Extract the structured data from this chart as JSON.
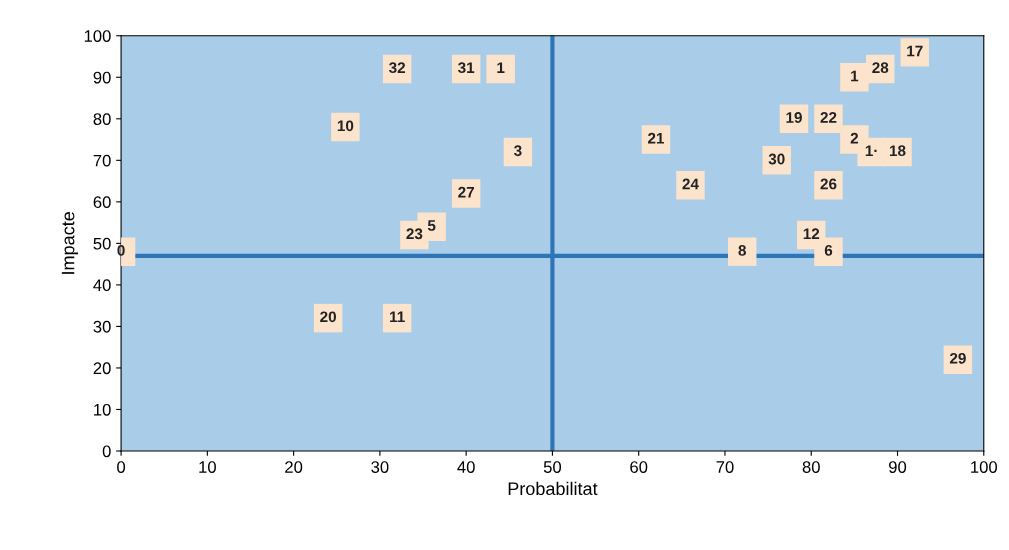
{
  "chart_data": {
    "type": "scatter",
    "xlabel": "Probabilitat",
    "ylabel": "Impacte",
    "x": [
      32,
      40,
      44,
      26,
      46,
      40,
      34,
      36,
      0,
      62,
      66,
      76,
      78,
      82,
      82,
      80,
      82,
      72,
      92,
      88,
      85,
      85,
      87,
      90,
      97,
      24,
      32
    ],
    "series": [
      {
        "color": "#fbe3cc",
        "values": [
          92,
          92,
          92,
          78,
          72,
          62,
          52,
          54,
          48,
          75,
          64,
          70,
          80,
          80,
          64,
          52,
          48,
          48,
          96,
          92,
          90,
          75,
          72,
          72,
          22,
          32,
          32
        ]
      }
    ],
    "marker": "square",
    "annotations": [
      {
        "text": "32",
        "x": 32,
        "y": 92
      },
      {
        "text": "31",
        "x": 40,
        "y": 92
      },
      {
        "text": "1",
        "x": 44,
        "y": 92
      },
      {
        "text": "10",
        "x": 26,
        "y": 78
      },
      {
        "text": "3",
        "x": 46,
        "y": 72
      },
      {
        "text": "27",
        "x": 40,
        "y": 62
      },
      {
        "text": "23",
        "x": 34,
        "y": 52
      },
      {
        "text": "5",
        "x": 36,
        "y": 54
      },
      {
        "text": "0",
        "x": 0,
        "y": 48
      },
      {
        "text": "21",
        "x": 62,
        "y": 75
      },
      {
        "text": "24",
        "x": 66,
        "y": 64
      },
      {
        "text": "30",
        "x": 76,
        "y": 70
      },
      {
        "text": "19",
        "x": 78,
        "y": 80
      },
      {
        "text": "22",
        "x": 82,
        "y": 80
      },
      {
        "text": "26",
        "x": 82,
        "y": 64
      },
      {
        "text": "12",
        "x": 80,
        "y": 52
      },
      {
        "text": "6",
        "x": 82,
        "y": 48
      },
      {
        "text": "8",
        "x": 72,
        "y": 48
      },
      {
        "text": "17",
        "x": 92,
        "y": 96
      },
      {
        "text": "28",
        "x": 88,
        "y": 92
      },
      {
        "text": "1",
        "x": 85,
        "y": 90
      },
      {
        "text": "2",
        "x": 85,
        "y": 75
      },
      {
        "text": "1·",
        "x": 87,
        "y": 72
      },
      {
        "text": "18",
        "x": 90,
        "y": 72
      },
      {
        "text": "29",
        "x": 97,
        "y": 22
      },
      {
        "text": "20",
        "x": 24,
        "y": 32
      },
      {
        "text": "11",
        "x": 32,
        "y": 32
      }
    ],
    "ref_lines": [
      {
        "axis": "x",
        "value": 50,
        "color": "#2e75b6"
      },
      {
        "axis": "y",
        "value": 47,
        "color": "#2e75b6"
      }
    ],
    "xlim": [
      0,
      100
    ],
    "ylim": [
      0,
      100
    ],
    "xticks": [
      0,
      10,
      20,
      30,
      40,
      50,
      60,
      70,
      80,
      90,
      100
    ],
    "yticks": [
      0,
      10,
      20,
      30,
      40,
      50,
      60,
      70,
      80,
      90,
      100
    ],
    "grid": false,
    "legend": false
  }
}
